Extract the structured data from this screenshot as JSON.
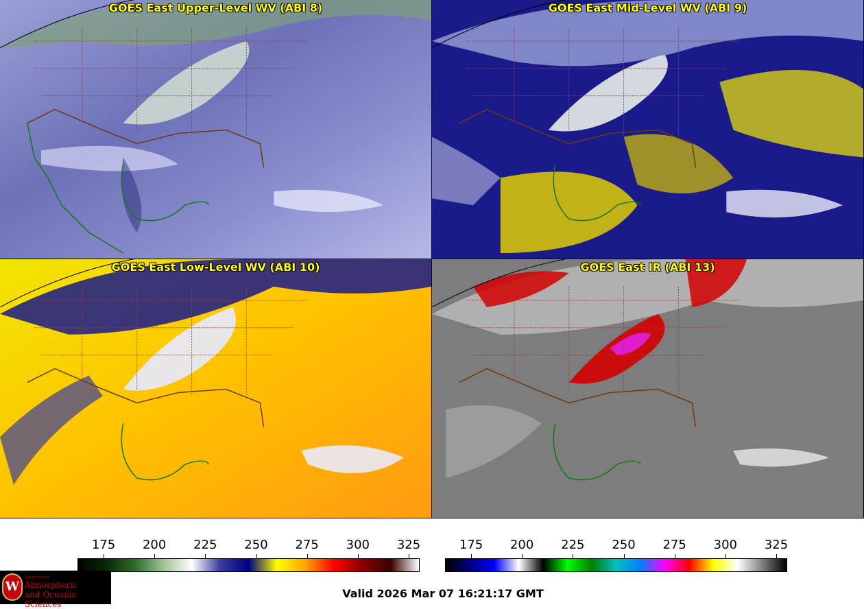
{
  "panels": [
    {
      "id": "p1",
      "title": "GOES East Upper-Level WV (ABI 8)",
      "scheme": "wv"
    },
    {
      "id": "p2",
      "title": "GOES East Mid-Level WV (ABI 9)",
      "scheme": "wvmid"
    },
    {
      "id": "p3",
      "title": "GOES East Low-Level WV (ABI 10)",
      "scheme": "wvlow"
    },
    {
      "id": "p4",
      "title": "GOES East IR (ABI 13)",
      "scheme": "ir"
    }
  ],
  "colorbars": {
    "wv": {
      "ticks": [
        "175",
        "200",
        "225",
        "250",
        "275",
        "300",
        "325"
      ],
      "stops": [
        "#000000",
        "#0a2a0a",
        "#2f6b2a",
        "#9ec394",
        "#ffffff",
        "#3b3b9e",
        "#000080",
        "#ffff00",
        "#ffa500",
        "#ff0000",
        "#8b0000",
        "#3a0000",
        "#ffffff"
      ]
    },
    "ir": {
      "ticks": [
        "175",
        "200",
        "225",
        "250",
        "275",
        "300",
        "325"
      ],
      "stops": [
        "#000000",
        "#00007f",
        "#0000ff",
        "#ffffff",
        "#000000",
        "#00ff00",
        "#008000",
        "#00bfbf",
        "#0080ff",
        "#ff00ff",
        "#ff0000",
        "#ffff00",
        "#ffffff",
        "#808080",
        "#000000"
      ]
    }
  },
  "logo": {
    "department": "Department of",
    "line1": "Atmospheric",
    "line2": "and Oceanic Sciences",
    "seal": "W"
  },
  "valid_text": "Valid 2026 Mar 07 16:21:17 GMT"
}
